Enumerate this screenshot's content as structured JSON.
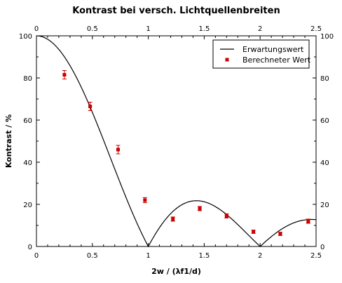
{
  "chart_data": {
    "type": "line",
    "title": "Kontrast bei versch. Lichtquellenbreiten",
    "xlabel": "2w / (λf1/d)",
    "ylabel": "Kontrast / %",
    "xlim": [
      0,
      2.5
    ],
    "ylim": [
      0,
      100
    ],
    "x_ticks": [
      "0",
      "0.5",
      "1",
      "1.5",
      "2",
      "2.5"
    ],
    "x_tick_values": [
      0,
      0.5,
      1,
      1.5,
      2,
      2.5
    ],
    "y_ticks": [
      "0",
      "20",
      "40",
      "60",
      "80",
      "100"
    ],
    "y_tick_values": [
      0,
      20,
      40,
      60,
      80,
      100
    ],
    "mirror_axes": true,
    "grid": false,
    "legend_position": "top-right",
    "series": [
      {
        "name": "Erwartungswert",
        "type": "line",
        "color": "#000000",
        "function": "abs(sinc(x))"
      },
      {
        "name": "Berechneter Wert",
        "type": "scatter",
        "color": "#cc0000",
        "x": [
          0.25,
          0.48,
          0.73,
          0.97,
          1.22,
          1.46,
          1.7,
          1.94,
          2.18,
          2.43
        ],
        "y": [
          81.5,
          66.5,
          46,
          22,
          13,
          18,
          14.5,
          7,
          6,
          12
        ],
        "err": [
          2,
          2,
          2,
          1.2,
          1,
          1,
          1,
          0.8,
          0.8,
          1
        ]
      }
    ]
  }
}
